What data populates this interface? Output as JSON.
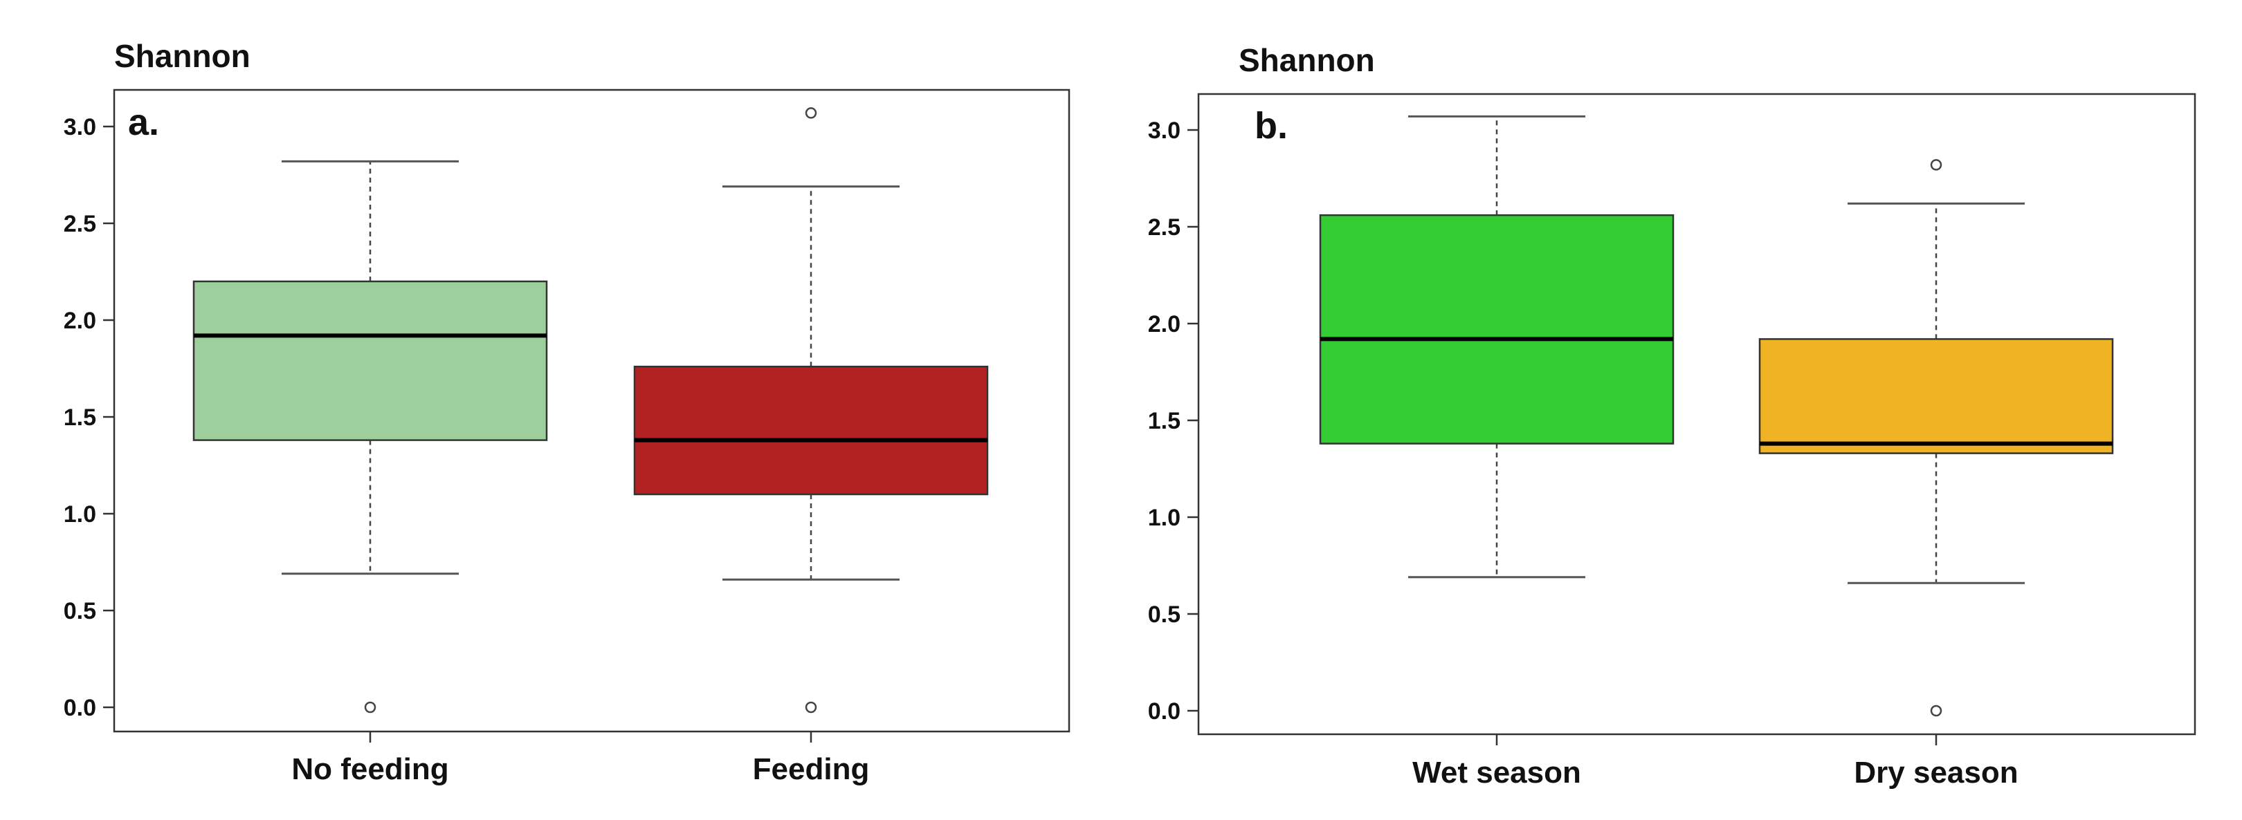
{
  "chart_data": [
    {
      "type": "box",
      "panel_label": "a.",
      "ylabel": "Shannon",
      "ylim": [
        -0.05,
        3.15
      ],
      "yticks": [
        "0.0",
        "0.5",
        "1.0",
        "1.5",
        "2.0",
        "2.5",
        "3.0"
      ],
      "categories": [
        "No feeding",
        "Feeding"
      ],
      "boxes": [
        {
          "name": "No feeding",
          "whisker_low": 0.69,
          "q1": 1.38,
          "median": 1.92,
          "q3": 2.2,
          "whisker_high": 2.82,
          "outliers": [
            0.0
          ],
          "color": "#9ccf9c"
        },
        {
          "name": "Feeding",
          "whisker_low": 0.66,
          "q1": 1.1,
          "median": 1.38,
          "q3": 1.76,
          "whisker_high": 2.69,
          "outliers": [
            0.0,
            3.07
          ],
          "color": "#b22222"
        }
      ]
    },
    {
      "type": "box",
      "panel_label": "b.",
      "ylabel": "Shannon",
      "ylim": [
        -0.05,
        3.15
      ],
      "yticks": [
        "0.0",
        "0.5",
        "1.0",
        "1.5",
        "2.0",
        "2.5",
        "3.0"
      ],
      "categories": [
        "Wet season",
        "Dry season"
      ],
      "boxes": [
        {
          "name": "Wet season",
          "whisker_low": 0.69,
          "q1": 1.38,
          "median": 1.92,
          "q3": 2.56,
          "whisker_high": 3.07,
          "outliers": [],
          "color": "#33cc33"
        },
        {
          "name": "Dry season",
          "whisker_low": 0.66,
          "q1": 1.33,
          "median": 1.38,
          "q3": 1.92,
          "whisker_high": 2.62,
          "outliers": [
            0.0,
            2.82
          ],
          "color": "#f0b323"
        }
      ]
    }
  ]
}
